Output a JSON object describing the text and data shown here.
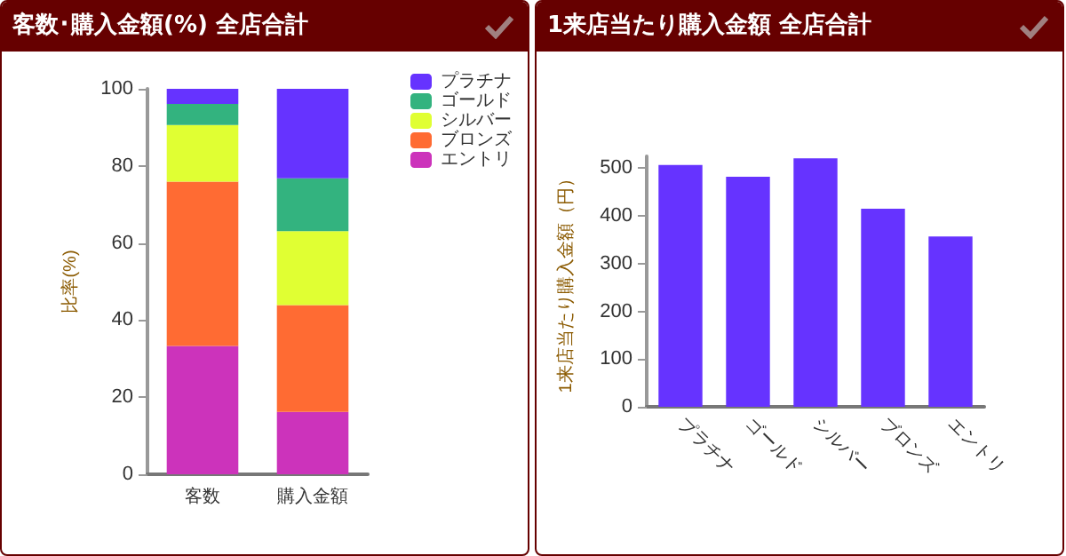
{
  "chart_data": [
    {
      "type": "bar",
      "title": "客数･購入金額(%) 全店合計",
      "ylabel": "比率(%)",
      "categories": [
        "客数",
        "購入金額"
      ],
      "stacked": true,
      "legend": "top right",
      "ylim": [
        0,
        100
      ],
      "yticks": [
        0,
        20,
        40,
        60,
        80,
        100
      ],
      "series": [
        {
          "name": "エントリ",
          "color": "#cc33bb",
          "values": [
            33.3,
            16.2
          ]
        },
        {
          "name": "ブロンズ",
          "color": "#ff6b33",
          "values": [
            42.6,
            27.7
          ]
        },
        {
          "name": "シルバー",
          "color": "#e0ff33",
          "values": [
            14.7,
            19.2
          ]
        },
        {
          "name": "ゴールド",
          "color": "#33b37f",
          "values": [
            5.5,
            13.7
          ]
        },
        {
          "name": "プラチナ",
          "color": "#6633ff",
          "values": [
            3.9,
            23.2
          ]
        }
      ]
    },
    {
      "type": "bar",
      "title": "1来店当たり購入金額 全店合計",
      "ylabel": "1来店当たり購入金額（円）",
      "categories": [
        "プラチナ",
        "ゴールド",
        "シルバー",
        "ブロンズ",
        "エントリ"
      ],
      "ylim": [
        0,
        525
      ],
      "yticks": [
        0,
        100,
        200,
        300,
        400,
        500
      ],
      "series": [
        {
          "color": "#6633ff",
          "values": [
            507,
            482,
            521,
            415,
            357
          ]
        }
      ]
    }
  ]
}
